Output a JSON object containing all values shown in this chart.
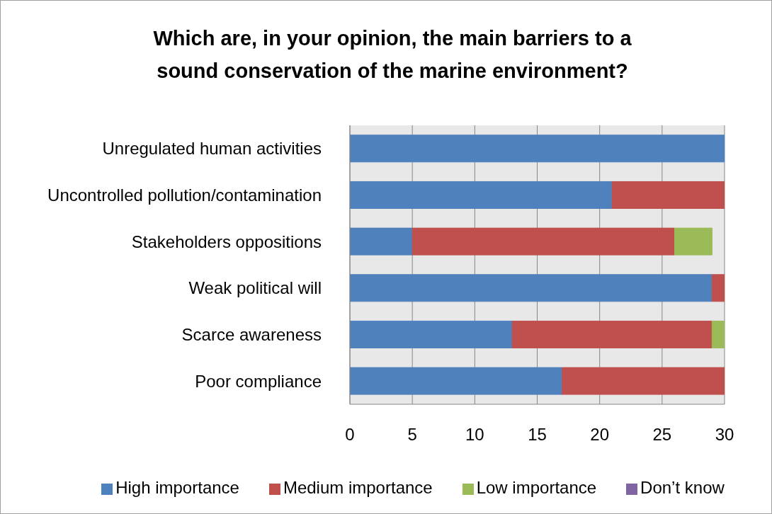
{
  "chart_data": {
    "type": "bar",
    "orientation": "horizontal",
    "stacked": true,
    "title": "Which are, in your opinion, the main barriers to a sound conservation of the marine environment?",
    "categories": [
      "Unregulated human activities",
      "Uncontrolled pollution/contamination",
      "Stakeholders oppositions",
      "Weak political will",
      "Scarce awareness",
      "Poor compliance"
    ],
    "series": [
      {
        "name": "High importance",
        "color": "#4f81bd",
        "values": [
          30,
          21,
          5,
          29,
          13,
          17
        ]
      },
      {
        "name": "Medium importance",
        "color": "#c0504d",
        "values": [
          0,
          9,
          21,
          1,
          16,
          13
        ]
      },
      {
        "name": "Low importance",
        "color": "#9bbb59",
        "values": [
          0,
          0,
          3,
          0,
          1,
          0
        ]
      },
      {
        "name": "Don’t know",
        "color": "#8064a2",
        "values": [
          0,
          0,
          0,
          0,
          0,
          0
        ]
      }
    ],
    "xlim": [
      0,
      30
    ],
    "xticks": [
      0,
      5,
      10,
      15,
      20,
      25,
      30
    ],
    "grid": "x",
    "legend": "bottom"
  }
}
